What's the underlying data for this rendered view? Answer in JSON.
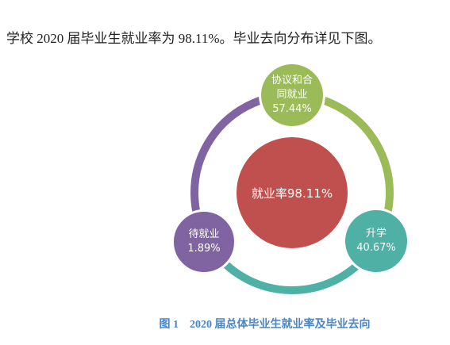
{
  "intro": "学校 2020 届毕业生就业率为 98.11%。毕业去向分布详见下图。",
  "diagram": {
    "center": "就业率98.11%",
    "nodes": [
      {
        "label": "协议和合同就业",
        "value": "57.44%"
      },
      {
        "label": "升学",
        "value": "40.67%"
      },
      {
        "label": "待就业",
        "value": "1.89%"
      }
    ]
  },
  "caption": "图 1　2020 届总体毕业生就业率及毕业去向"
}
